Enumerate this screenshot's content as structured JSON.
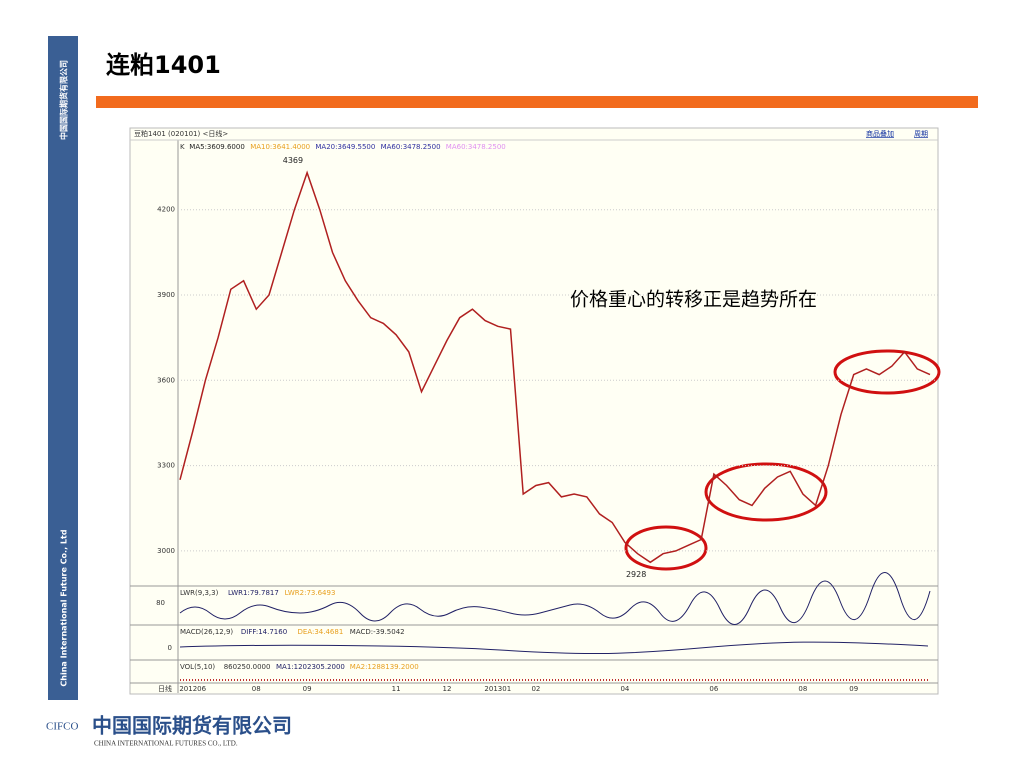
{
  "slide": {
    "title": "连粕1401",
    "side_top": "中国国际期货有限公司",
    "side_bottom": "China International Future Co., Ltd",
    "panel_header": "豆粕1401 (020101) <日线>",
    "links": [
      "商品叠加",
      "周期"
    ],
    "indicators": [
      {
        "text": "K",
        "color": "#333333"
      },
      {
        "text": "MA5:3609.6000",
        "color": "#222222"
      },
      {
        "text": "MA10:3641.4000",
        "color": "#e8a020"
      },
      {
        "text": "MA20:3649.5500",
        "color": "#3030a0"
      },
      {
        "text": "MA60:3478.2500",
        "color": "#3030a0"
      },
      {
        "text": "MA60:3478.2500",
        "color": "#e090f0"
      }
    ],
    "lwr": [
      {
        "text": "LWR(9,3,3)",
        "color": "#333333"
      },
      {
        "text": "LWR1:79.7817",
        "color": "#222266"
      },
      {
        "text": "LWR2:73.6493",
        "color": "#e8a020"
      }
    ],
    "lwr_tick": "80",
    "macd": [
      {
        "text": "MACD(26,12,9)",
        "color": "#333333"
      },
      {
        "text": "DIFF:14.7160",
        "color": "#222266"
      },
      {
        "text": "DEA:34.4681",
        "color": "#e8a020"
      },
      {
        "text": "MACD:-39.5042",
        "color": "#333333"
      }
    ],
    "macd_tick": "0",
    "vol": [
      {
        "text": "VOL(5,10)",
        "color": "#333333"
      },
      {
        "text": "860250.0000",
        "color": "#333333"
      },
      {
        "text": "MA1:1202305.2000",
        "color": "#222266"
      },
      {
        "text": "MA2:1288139.2000",
        "color": "#e8a020"
      }
    ],
    "period": "日线",
    "callout": "价格重心的转移正是趋势所在",
    "logo": "CIFCO",
    "company_cn": "中国国际期货有限公司",
    "company_en": "CHINA INTERNATIONAL FUTURES CO., LTD."
  },
  "chart_data": {
    "type": "line",
    "categories": [
      null,
      "201206",
      null,
      null,
      null,
      null,
      "08",
      null,
      null,
      null,
      "09",
      null,
      null,
      null,
      null,
      null,
      null,
      "11",
      null,
      null,
      null,
      "12",
      null,
      null,
      null,
      "201301",
      null,
      null,
      "02",
      null,
      null,
      null,
      null,
      null,
      null,
      "04",
      null,
      null,
      null,
      null,
      null,
      null,
      "06",
      null,
      null,
      null,
      null,
      null,
      null,
      "08",
      null,
      null,
      null,
      "09",
      null,
      null,
      null,
      null,
      null,
      null
    ],
    "series": [
      {
        "name": "K",
        "color": "#b02020",
        "values": [
          3250,
          3420,
          3600,
          3750,
          3920,
          3950,
          3850,
          3900,
          4050,
          4200,
          4330,
          4200,
          4050,
          3950,
          3880,
          3820,
          3800,
          3760,
          3700,
          3560,
          3650,
          3740,
          3820,
          3850,
          3810,
          3790,
          3780,
          3200,
          3230,
          3240,
          3190,
          3200,
          3190,
          3130,
          3100,
          3030,
          2990,
          2960,
          2990,
          3000,
          3020,
          3040,
          3270,
          3230,
          3180,
          3160,
          3220,
          3260,
          3280,
          3200,
          3160,
          3300,
          3480,
          3620,
          3640,
          3620,
          3650,
          3700,
          3640,
          3620
        ]
      }
    ],
    "annotations": [
      "4369",
      "2928"
    ],
    "ylim": [
      2880,
      4410
    ],
    "yticks": [
      3000,
      3300,
      3600,
      3900,
      4200
    ],
    "grid": true
  }
}
